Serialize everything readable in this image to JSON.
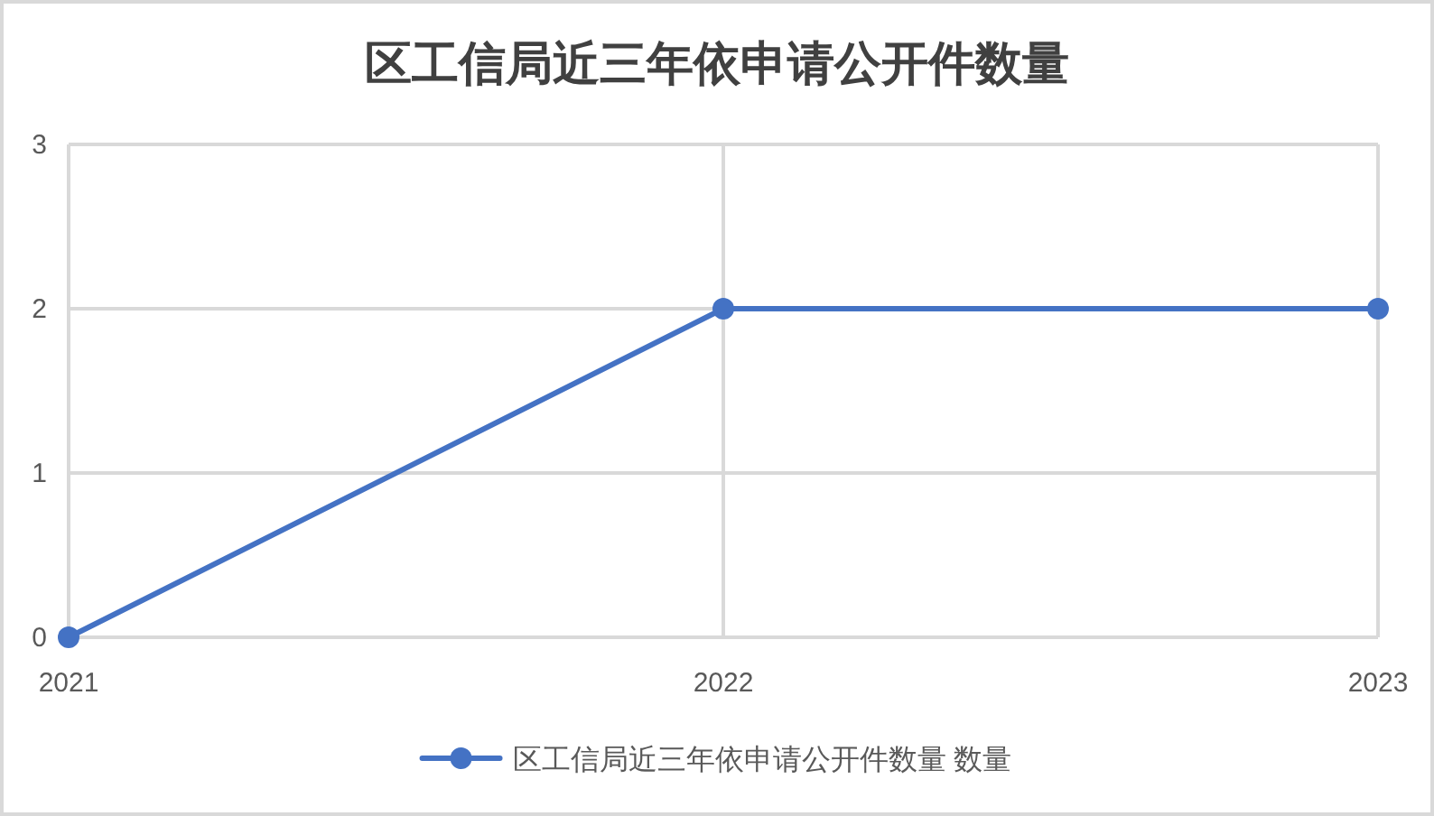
{
  "chart_data": {
    "type": "line",
    "title": "区工信局近三年依申请公开件数量",
    "categories": [
      "2021",
      "2022",
      "2023"
    ],
    "series": [
      {
        "name": "区工信局近三年依申请公开件数量 数量",
        "color": "#4472c4",
        "values": [
          0,
          2,
          2
        ]
      }
    ],
    "ylim": [
      0,
      3
    ],
    "yticks": [
      0,
      1,
      2,
      3
    ],
    "grid": true,
    "legend": "bottom",
    "marker": "circle",
    "line_style": "solid"
  }
}
